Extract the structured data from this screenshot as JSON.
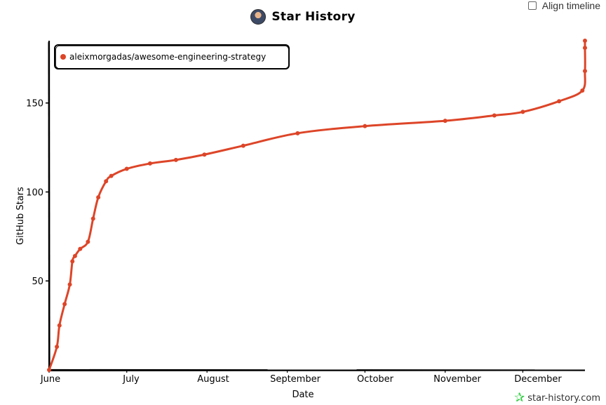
{
  "header": {
    "title": "Star History"
  },
  "controls": {
    "align_timeline_label": "Align timeline"
  },
  "footer": {
    "brand": "star-history.com"
  },
  "colors": {
    "series": "#dd4528",
    "axis": "#000000",
    "brand_icon": "#2ecc40"
  },
  "chart_data": {
    "type": "line",
    "title": "Star History",
    "xlabel": "Date",
    "ylabel": "GitHub Stars",
    "x_ticks": [
      "June",
      "July",
      "August",
      "September",
      "October",
      "November",
      "December"
    ],
    "y_ticks": [
      50,
      100,
      150
    ],
    "ylim": [
      0,
      185
    ],
    "legend_position": "top-left",
    "grid": false,
    "series": [
      {
        "name": "aleixmorgadas/awesome-engineering-strategy",
        "points": [
          [
            "2023-06-01",
            0
          ],
          [
            "2023-06-04",
            13
          ],
          [
            "2023-06-05",
            25
          ],
          [
            "2023-06-07",
            37
          ],
          [
            "2023-06-09",
            48
          ],
          [
            "2023-06-10",
            61
          ],
          [
            "2023-06-11",
            64
          ],
          [
            "2023-06-13",
            68
          ],
          [
            "2023-06-16",
            72
          ],
          [
            "2023-06-18",
            85
          ],
          [
            "2023-06-20",
            97
          ],
          [
            "2023-06-23",
            106
          ],
          [
            "2023-06-25",
            109
          ],
          [
            "2023-07-01",
            113
          ],
          [
            "2023-07-10",
            116
          ],
          [
            "2023-07-20",
            118
          ],
          [
            "2023-07-31",
            121
          ],
          [
            "2023-08-15",
            126
          ],
          [
            "2023-09-05",
            133
          ],
          [
            "2023-10-01",
            137
          ],
          [
            "2023-11-01",
            140
          ],
          [
            "2023-11-20",
            143
          ],
          [
            "2023-12-01",
            145
          ],
          [
            "2023-12-15",
            151
          ],
          [
            "2023-12-24",
            157
          ],
          [
            "2023-12-25",
            168
          ],
          [
            "2023-12-25",
            181
          ],
          [
            "2023-12-25",
            185
          ]
        ]
      }
    ]
  }
}
